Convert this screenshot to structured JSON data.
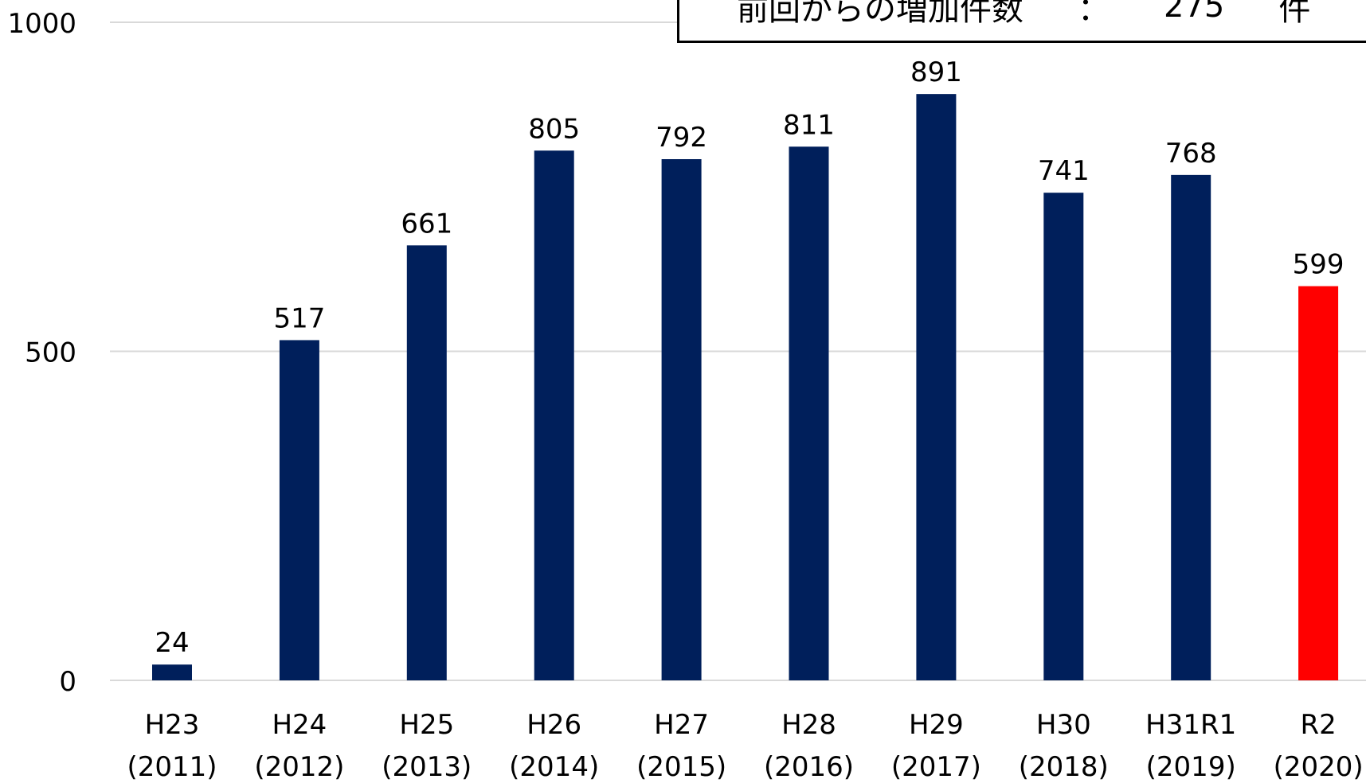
{
  "chart_data": {
    "type": "bar",
    "categories": [
      {
        "era": "H23",
        "year": "(2011)"
      },
      {
        "era": "H24",
        "year": "(2012)"
      },
      {
        "era": "H25",
        "year": "(2013)"
      },
      {
        "era": "H26",
        "year": "(2014)"
      },
      {
        "era": "H27",
        "year": "(2015)"
      },
      {
        "era": "H28",
        "year": "(2016)"
      },
      {
        "era": "H29",
        "year": "(2017)"
      },
      {
        "era": "H30",
        "year": "(2018)"
      },
      {
        "era": "H31R1",
        "year": "(2019)"
      },
      {
        "era": "R2",
        "year": "(2020)"
      }
    ],
    "values": [
      24,
      517,
      661,
      805,
      792,
      811,
      891,
      741,
      768,
      599
    ],
    "value_labels": [
      "24",
      "517",
      "661",
      "805",
      "792",
      "811",
      "891",
      "741",
      "768",
      "599"
    ],
    "ylim": [
      0,
      1000
    ],
    "yticks": [
      0,
      500,
      1000
    ],
    "ytick_labels": [
      "0",
      "500",
      "1000"
    ],
    "grid": true,
    "colors": {
      "default_bar": "#001f5b",
      "highlight_bar": "#ff0000",
      "gridline": "#d9d9d9"
    },
    "highlight_index": 9
  },
  "annotation": {
    "label": "前回からの増加件数",
    "separator": "：",
    "value": "275",
    "unit": "件"
  }
}
